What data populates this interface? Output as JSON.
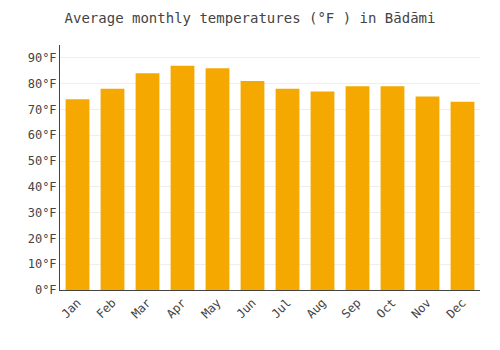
{
  "chart_data": {
    "type": "bar",
    "title": "Average monthly temperatures (°F ) in Bādāmi",
    "categories": [
      "Jan",
      "Feb",
      "Mar",
      "Apr",
      "May",
      "Jun",
      "Jul",
      "Aug",
      "Sep",
      "Oct",
      "Nov",
      "Dec"
    ],
    "values": [
      74,
      78,
      84,
      87,
      86,
      81,
      78,
      77,
      79,
      79,
      75,
      73
    ],
    "color": "#F5A800",
    "ylim": [
      0,
      95
    ],
    "yticks": [
      {
        "value": 0,
        "label": "0°F"
      },
      {
        "value": 10,
        "label": "10°F"
      },
      {
        "value": 20,
        "label": "20°F"
      },
      {
        "value": 30,
        "label": "30°F"
      },
      {
        "value": 40,
        "label": "40°F"
      },
      {
        "value": 50,
        "label": "50°F"
      },
      {
        "value": 60,
        "label": "60°F"
      },
      {
        "value": 70,
        "label": "70°F"
      },
      {
        "value": 80,
        "label": "80°F"
      },
      {
        "value": 90,
        "label": "90°F"
      }
    ],
    "grid": true
  }
}
